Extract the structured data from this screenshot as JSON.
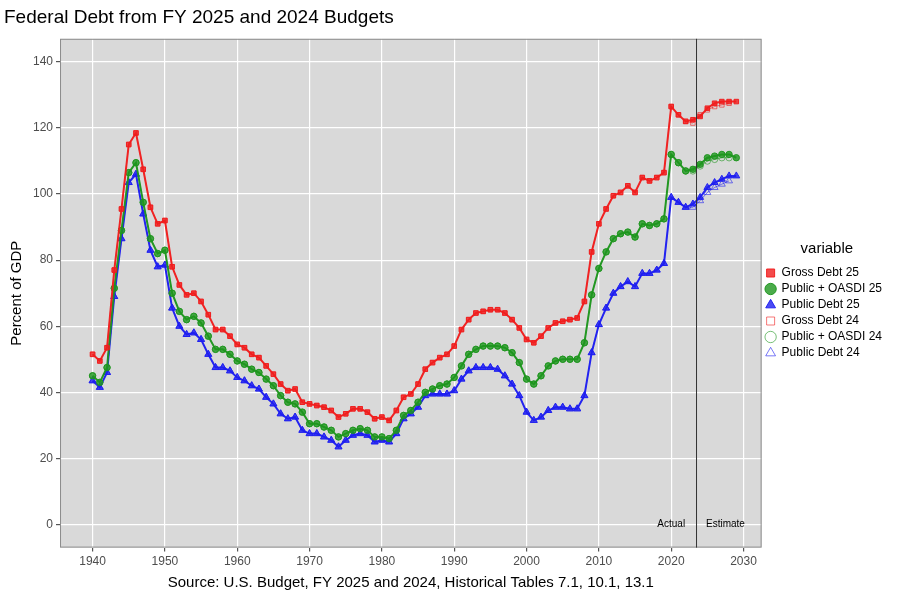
{
  "chart_data": {
    "type": "line",
    "title": "Federal Debt from FY 2025 and 2024 Budgets",
    "x_label": "Source: U.S. Budget, FY 2025 and 2024, Historical Tables 7.1, 10.1, 13.1",
    "y_label": "Percent of GDP",
    "legend_title": "variable",
    "legend": "right",
    "grid": true,
    "xlim": [
      1935.5,
      2032.5
    ],
    "xticks": [
      1940,
      1950,
      1960,
      1970,
      1980,
      1990,
      2000,
      2010,
      2020,
      2030
    ],
    "ylim": [
      -7,
      147
    ],
    "yticks": [
      0,
      20,
      40,
      60,
      80,
      100,
      120,
      140
    ],
    "vlines": [
      2023.5
    ],
    "annotations": [
      {
        "text": "Actual",
        "x": 2020,
        "y": 0
      },
      {
        "text": "Estimate",
        "x": 2027.5,
        "y": 0
      }
    ],
    "x": [
      1940,
      1941,
      1942,
      1943,
      1944,
      1945,
      1946,
      1947,
      1948,
      1949,
      1950,
      1951,
      1952,
      1953,
      1954,
      1955,
      1956,
      1957,
      1958,
      1959,
      1960,
      1961,
      1962,
      1963,
      1964,
      1965,
      1966,
      1967,
      1968,
      1969,
      1970,
      1971,
      1972,
      1973,
      1974,
      1975,
      1976,
      1977,
      1978,
      1979,
      1980,
      1981,
      1982,
      1983,
      1984,
      1985,
      1986,
      1987,
      1988,
      1989,
      1990,
      1991,
      1992,
      1993,
      1994,
      1995,
      1996,
      1997,
      1998,
      1999,
      2000,
      2001,
      2002,
      2003,
      2004,
      2005,
      2006,
      2007,
      2008,
      2009,
      2010,
      2011,
      2012,
      2013,
      2014,
      2015,
      2016,
      2017,
      2018,
      2019,
      2020,
      2021,
      2022,
      2023,
      2024,
      2025,
      2026,
      2027,
      2028,
      2029
    ],
    "series": [
      {
        "name": "Gross Debt 25",
        "color": "#f01e1e",
        "marker": "square",
        "line_style": "solid",
        "values": [
          51.5,
          49.5,
          53.5,
          77,
          95.5,
          115,
          118.5,
          107.5,
          96,
          91,
          92,
          78,
          72.5,
          69.5,
          70,
          67.5,
          63.5,
          59,
          59,
          57,
          54.5,
          53.5,
          51.5,
          50.5,
          48,
          45.5,
          42.5,
          40.5,
          41,
          37,
          36.5,
          36,
          35.5,
          34.5,
          32.5,
          33.5,
          35,
          35,
          34,
          32,
          32.5,
          31.5,
          34.5,
          38.5,
          39.5,
          42.5,
          47,
          49,
          50.5,
          51.5,
          54,
          59,
          62,
          64,
          64.5,
          65,
          65,
          64,
          62,
          59.5,
          56,
          55,
          57,
          59.5,
          61,
          61.5,
          62,
          62.5,
          67.5,
          82.5,
          91,
          95.5,
          99.5,
          100.5,
          102.5,
          100.5,
          105,
          104,
          105,
          106.5,
          126.5,
          124,
          122,
          122.5,
          123.5,
          126,
          127.5,
          128,
          128,
          128
        ]
      },
      {
        "name": "Public + OASDI 25",
        "color": "#1e961e",
        "marker": "circle",
        "line_style": "solid",
        "values": [
          45,
          43,
          47.5,
          71.5,
          89,
          106.5,
          109.5,
          97.5,
          86.5,
          82,
          83,
          70,
          64.5,
          62,
          63,
          61,
          57,
          53,
          53,
          51.5,
          49.5,
          48.5,
          47,
          46,
          44,
          42,
          39,
          37,
          36.5,
          34,
          30.5,
          30.5,
          29.5,
          28.5,
          26.5,
          27.5,
          28.5,
          29,
          28.5,
          26.5,
          26.5,
          26,
          28.5,
          33,
          34.5,
          37,
          40,
          41,
          42,
          42.5,
          44.5,
          48,
          51.5,
          53,
          54,
          54,
          54,
          53.5,
          52,
          49,
          44,
          42.5,
          45,
          48,
          49.5,
          50,
          50,
          50,
          55,
          69.5,
          77.5,
          82.5,
          86.5,
          88,
          88.5,
          87,
          91,
          90.5,
          91,
          92.5,
          112,
          109.5,
          107,
          107.5,
          109,
          111,
          111.5,
          112,
          112,
          111
        ]
      },
      {
        "name": "Public Debt 25",
        "color": "#1e1ef0",
        "marker": "triangle",
        "line_style": "solid",
        "values": [
          43.5,
          41.5,
          46,
          69,
          86.5,
          103.5,
          106,
          94,
          83,
          78,
          78.5,
          65.5,
          60,
          57.5,
          58,
          56,
          51.5,
          47.5,
          47.5,
          46.5,
          44.5,
          43.5,
          42,
          41,
          38.5,
          36.5,
          33.5,
          32,
          32.5,
          28.5,
          27.5,
          27.5,
          26.5,
          25.5,
          23.5,
          25.5,
          27,
          27.5,
          27,
          25,
          25.5,
          25,
          27.5,
          32,
          33.5,
          35.5,
          39,
          39.5,
          39.5,
          39.5,
          40.5,
          44,
          46.5,
          47.5,
          47.5,
          47.5,
          47,
          45,
          42.5,
          39,
          34,
          31.5,
          32.5,
          34.5,
          35.5,
          35.5,
          35,
          35,
          39,
          52,
          60.5,
          65.5,
          70,
          72,
          73.5,
          72,
          76,
          76,
          77,
          79,
          99,
          97.5,
          96,
          97,
          99,
          102,
          103.5,
          104.5,
          105.5,
          105.5
        ]
      },
      {
        "name": "Gross Debt 24",
        "color": "#f01e1e",
        "marker": "square-open",
        "line_style": "solid",
        "values": [
          51.5,
          49.5,
          53.5,
          77,
          95.5,
          115,
          118.5,
          107.5,
          96,
          91,
          92,
          78,
          72.5,
          69.5,
          70,
          67.5,
          63.5,
          59,
          59,
          57,
          54.5,
          53.5,
          51.5,
          50.5,
          48,
          45.5,
          42.5,
          40.5,
          41,
          37,
          36.5,
          36,
          35.5,
          34.5,
          32.5,
          33.5,
          35,
          35,
          34,
          32,
          32.5,
          31.5,
          34.5,
          38.5,
          39.5,
          42.5,
          47,
          49,
          50.5,
          51.5,
          54,
          59,
          62,
          64,
          64.5,
          65,
          65,
          64,
          62,
          59.5,
          56,
          55,
          57,
          59.5,
          61,
          61.5,
          62,
          62.5,
          67.5,
          82.5,
          91,
          95.5,
          99.5,
          100.5,
          102.5,
          100.5,
          105,
          104,
          105,
          106.5,
          126.5,
          124,
          122,
          121.5,
          124,
          125.5,
          126.5,
          127,
          127.5,
          null
        ]
      },
      {
        "name": "Public + OASDI 24",
        "color": "#1e961e",
        "marker": "circle-open",
        "line_style": "solid",
        "values": [
          45,
          43,
          47.5,
          71.5,
          89,
          106.5,
          109.5,
          97.5,
          86.5,
          82,
          83,
          70,
          64.5,
          62,
          63,
          61,
          57,
          53,
          53,
          51.5,
          49.5,
          48.5,
          47,
          46,
          44,
          42,
          39,
          37,
          36.5,
          34,
          30.5,
          30.5,
          29.5,
          28.5,
          26.5,
          27.5,
          28.5,
          29,
          28.5,
          26.5,
          26.5,
          26,
          28.5,
          33,
          34.5,
          37,
          40,
          41,
          42,
          42.5,
          44.5,
          48,
          51.5,
          53,
          54,
          54,
          54,
          53.5,
          52,
          49,
          44,
          42.5,
          45,
          48,
          49.5,
          50,
          50,
          50,
          55,
          69.5,
          77.5,
          82.5,
          86.5,
          88,
          88.5,
          87,
          91,
          90.5,
          91,
          92.5,
          112,
          109.5,
          107,
          107,
          108.5,
          110,
          110.5,
          111,
          111,
          null
        ]
      },
      {
        "name": "Public Debt 24",
        "color": "#1e1ef0",
        "marker": "triangle-open",
        "line_style": "solid",
        "values": [
          43.5,
          41.5,
          46,
          69,
          86.5,
          103.5,
          106,
          94,
          83,
          78,
          78.5,
          65.5,
          60,
          57.5,
          58,
          56,
          51.5,
          47.5,
          47.5,
          46.5,
          44.5,
          43.5,
          42,
          41,
          38.5,
          36.5,
          33.5,
          32,
          32.5,
          28.5,
          27.5,
          27.5,
          26.5,
          25.5,
          23.5,
          25.5,
          27,
          27.5,
          27,
          25,
          25.5,
          25,
          27.5,
          32,
          33.5,
          35.5,
          39,
          39.5,
          39.5,
          39.5,
          40.5,
          44,
          46.5,
          47.5,
          47.5,
          47.5,
          47,
          45,
          42.5,
          39,
          34,
          31.5,
          32.5,
          34.5,
          35.5,
          35.5,
          35,
          35,
          39,
          52,
          60.5,
          65.5,
          70,
          72,
          73.5,
          72,
          76,
          76,
          77,
          79,
          99,
          97.5,
          96,
          96,
          98,
          100.5,
          102,
          103,
          104,
          null
        ]
      }
    ]
  }
}
